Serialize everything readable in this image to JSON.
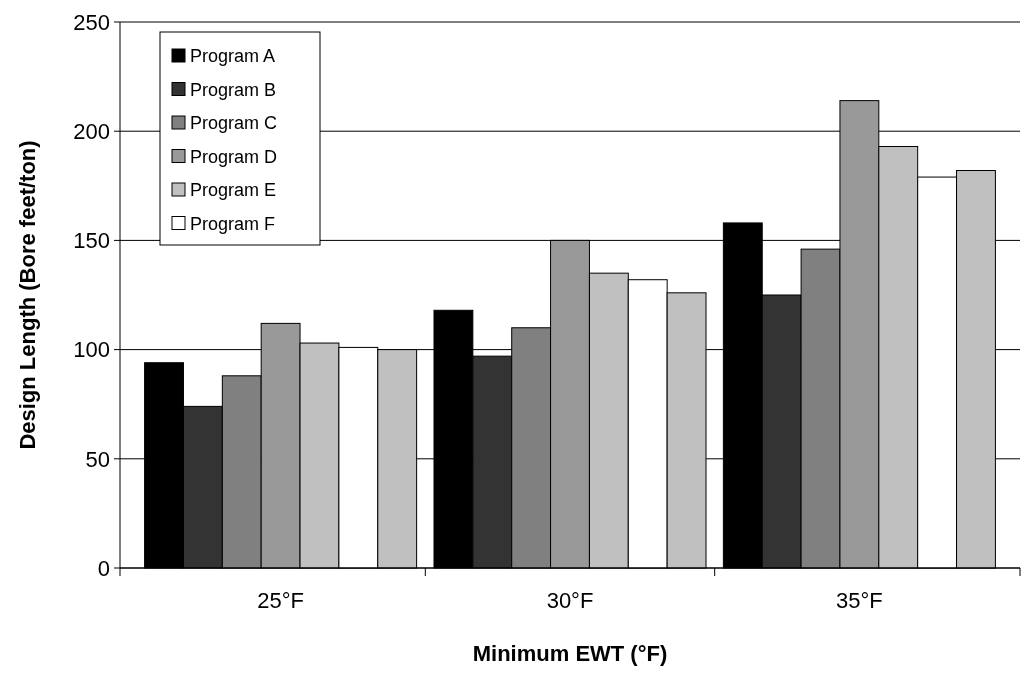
{
  "chart_data": {
    "type": "bar",
    "xlabel": "Minimum EWT (°F)",
    "ylabel": "Design Length (Bore feet/ton)",
    "categories": [
      "25°F",
      "30°F",
      "35°F"
    ],
    "series": [
      {
        "name": "Program A",
        "color": "#000000",
        "values": [
          94,
          118,
          158
        ]
      },
      {
        "name": "Program B",
        "color": "#333333",
        "values": [
          74,
          97,
          125
        ]
      },
      {
        "name": "Program C",
        "color": "#808080",
        "values": [
          88,
          110,
          146
        ]
      },
      {
        "name": "Program D",
        "color": "#999999",
        "values": [
          112,
          150,
          214
        ]
      },
      {
        "name": "Program E",
        "color": "#c0c0c0",
        "values": [
          103,
          135,
          193
        ]
      },
      {
        "name": "Program F",
        "color": "#ffffff",
        "values": [
          101,
          132,
          179
        ]
      },
      {
        "color": "#c0c0c0",
        "values": [
          100,
          126,
          182
        ]
      }
    ],
    "ylim": [
      0,
      250
    ],
    "yticks": [
      0,
      50,
      100,
      150,
      200,
      250
    ],
    "grid": "y",
    "legend": "top left"
  }
}
